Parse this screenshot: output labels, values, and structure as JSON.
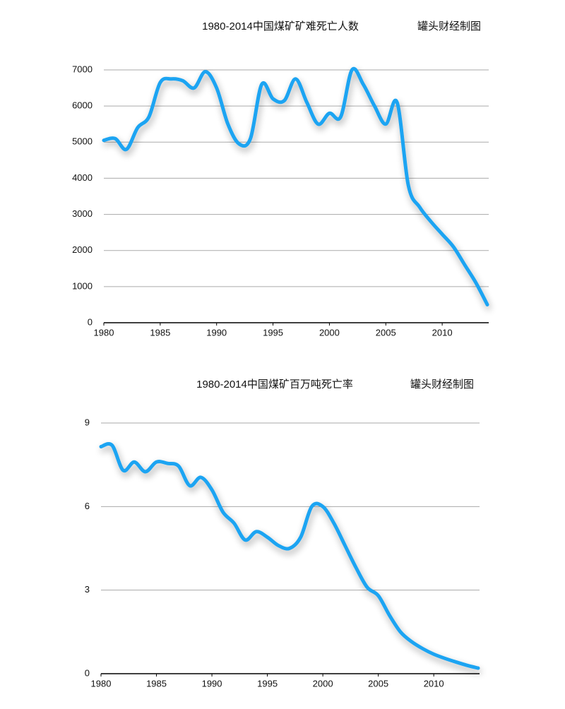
{
  "chart_data": [
    {
      "type": "line",
      "title": "1980-2014中国煤矿矿难死亡人数",
      "annotation": "罐头财经制图",
      "x": [
        1980,
        1981,
        1982,
        1983,
        1984,
        1985,
        1986,
        1987,
        1988,
        1989,
        1990,
        1991,
        1992,
        1993,
        1994,
        1995,
        1996,
        1997,
        1998,
        1999,
        2000,
        2001,
        2002,
        2003,
        2004,
        2005,
        2006,
        2007,
        2008,
        2009,
        2010,
        2011,
        2012,
        2013,
        2014
      ],
      "values": [
        5050,
        5100,
        4800,
        5400,
        5700,
        6650,
        6750,
        6700,
        6500,
        6950,
        6500,
        5500,
        4950,
        5100,
        6600,
        6200,
        6150,
        6750,
        6100,
        5500,
        5800,
        5700,
        7000,
        6600,
        6000,
        5500,
        6100,
        3800,
        3200,
        2800,
        2450,
        2100,
        1600,
        1100,
        500
      ],
      "color": "#1ba4f2",
      "xlim": [
        1980,
        2014
      ],
      "xticks": [
        1980,
        1985,
        1990,
        1995,
        2000,
        2005,
        2010
      ],
      "ylim": [
        0,
        7000
      ],
      "yticks": [
        0,
        1000,
        2000,
        3000,
        4000,
        5000,
        6000,
        7000
      ],
      "grid": true
    },
    {
      "type": "line",
      "title": "1980-2014中国煤矿百万吨死亡率",
      "annotation": "罐头财经制图",
      "x": [
        1980,
        1981,
        1982,
        1983,
        1984,
        1985,
        1986,
        1987,
        1988,
        1989,
        1990,
        1991,
        1992,
        1993,
        1994,
        1995,
        1996,
        1997,
        1998,
        1999,
        2000,
        2001,
        2002,
        2003,
        2004,
        2005,
        2006,
        2007,
        2008,
        2009,
        2010,
        2011,
        2012,
        2013,
        2014
      ],
      "values": [
        8.15,
        8.2,
        7.3,
        7.6,
        7.25,
        7.6,
        7.55,
        7.45,
        6.75,
        7.05,
        6.6,
        5.8,
        5.4,
        4.8,
        5.1,
        4.9,
        4.6,
        4.5,
        4.9,
        6.0,
        6.0,
        5.4,
        4.6,
        3.8,
        3.1,
        2.8,
        2.1,
        1.5,
        1.15,
        0.9,
        0.7,
        0.55,
        0.42,
        0.3,
        0.2
      ],
      "color": "#1ba4f2",
      "xlim": [
        1980,
        2014
      ],
      "xticks": [
        1980,
        1985,
        1990,
        1995,
        2000,
        2005,
        2010
      ],
      "ylim": [
        0,
        9
      ],
      "yticks": [
        0,
        3,
        6,
        9
      ],
      "grid": true
    }
  ]
}
